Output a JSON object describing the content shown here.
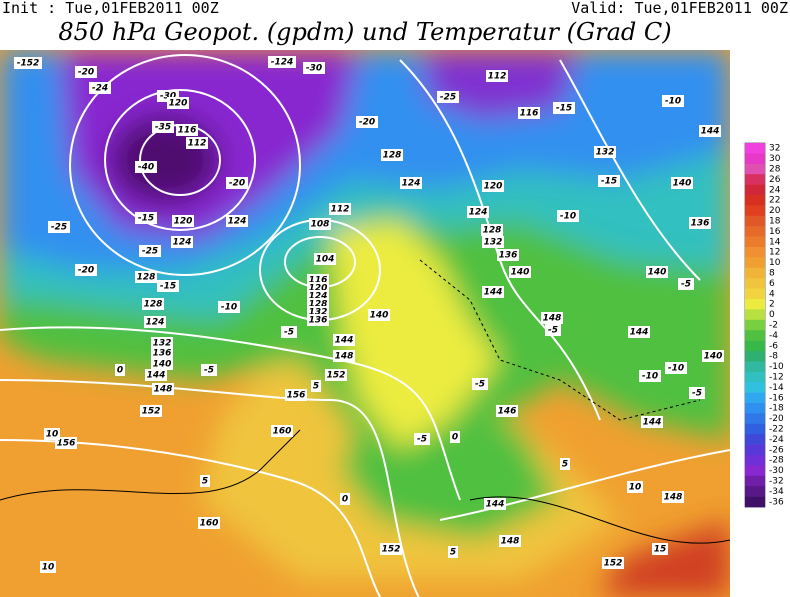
{
  "header": {
    "init": "Init : Tue,01FEB2011 00Z",
    "valid": "Valid: Tue,01FEB2011 00Z",
    "title": "850 hPa Geopot. (gpdm) und Temperatur (Grad C)"
  },
  "colorbar": {
    "labels": [
      32,
      30,
      28,
      26,
      24,
      22,
      20,
      18,
      16,
      14,
      12,
      10,
      8,
      6,
      4,
      2,
      0,
      -2,
      -4,
      -6,
      -8,
      -10,
      -12,
      -14,
      -16,
      -18,
      -20,
      -22,
      -24,
      -26,
      -28,
      -30,
      -32,
      -34,
      -36
    ],
    "colors": [
      "#f040e0",
      "#e838c8",
      "#e050b0",
      "#d83060",
      "#d02838",
      "#d83020",
      "#e04020",
      "#e05828",
      "#e86a28",
      "#ec7c2c",
      "#f09030",
      "#f0a030",
      "#f0b438",
      "#f0c43c",
      "#f0d440",
      "#ecec40",
      "#b8e040",
      "#78d040",
      "#50c040",
      "#38b848",
      "#30b070",
      "#30b8a0",
      "#30c0c0",
      "#30c0e0",
      "#30a8f0",
      "#3090f0",
      "#3078e8",
      "#3060e0",
      "#4048d8",
      "#5838d8",
      "#7030d8",
      "#8828d0",
      "#7020a8",
      "#581888",
      "#401068"
    ]
  },
  "contour_labels": [
    "-152",
    "-20",
    "-24",
    "-124",
    "-30",
    "-30",
    "120",
    "-35",
    "116",
    "112",
    "-40",
    "-20",
    "-15",
    "120",
    "124",
    "-25",
    "-25",
    "124",
    "-20",
    "128",
    "-15",
    "128",
    "124",
    "132",
    "136",
    "140",
    "144",
    "148",
    "152",
    "156",
    "160",
    "10",
    "10",
    "-5",
    "0",
    "-10",
    "-5",
    "104",
    "108",
    "112",
    "116",
    "120",
    "124",
    "128",
    "132",
    "136",
    "140",
    "144",
    "148",
    "152",
    "156",
    "160",
    "5",
    "128",
    "124",
    "120",
    "124",
    "128",
    "132",
    "136",
    "140",
    "144",
    "148",
    "144",
    "140",
    "136",
    "140",
    "144",
    "132",
    "116",
    "112",
    "-10",
    "-15",
    "-25",
    "-20",
    "-10",
    "-15",
    "-5",
    "-10",
    "-5",
    "-5",
    "0",
    "146",
    "144",
    "148",
    "144",
    "152",
    "152",
    "148",
    "10",
    "15",
    "5",
    "0",
    "5",
    "5",
    "-10",
    "-5",
    "-5",
    "140"
  ]
}
